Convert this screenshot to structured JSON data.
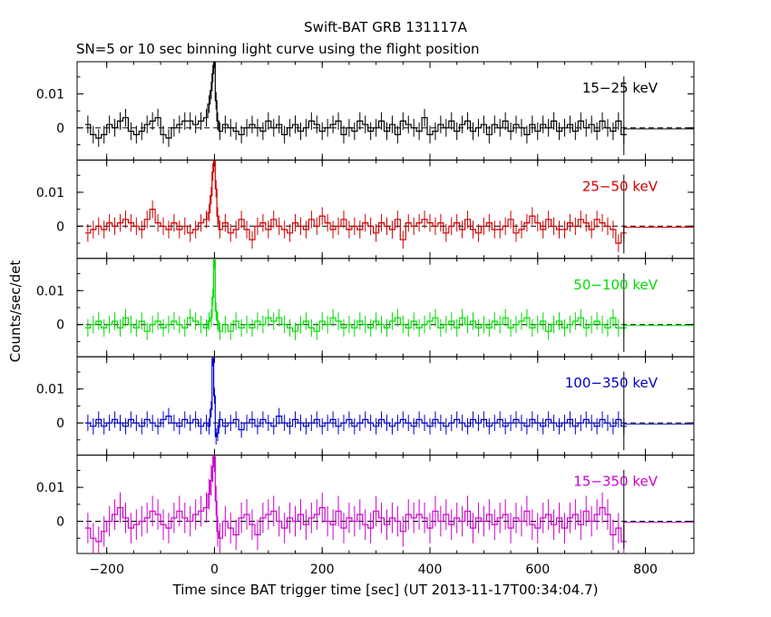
{
  "title": "Swift-BAT GRB 131117A",
  "subtitle": "SN=5 or 10 sec binning light curve using the flight position",
  "ylabel": "Counts/sec/det",
  "xlabel": "Time since BAT trigger time [sec] (UT 2013-11-17T00:34:04.7)",
  "chart_data": {
    "type": "line",
    "title": "Swift-BAT GRB 131117A",
    "subtitle": "SN=5 or 10 sec binning light curve using the flight position",
    "xlabel": "Time since BAT trigger time [sec] (UT 2013-11-17T00:34:04.7)",
    "ylabel": "Counts/sec/det",
    "xlim": [
      -255,
      890
    ],
    "ylim": [
      -0.0095,
      0.0195
    ],
    "x_ticks": [
      -200,
      0,
      200,
      400,
      600,
      800
    ],
    "y_ticks": [
      0,
      0.01
    ],
    "x_tick_labels": [
      "−200",
      "0",
      "200",
      "400",
      "600",
      "800"
    ],
    "y_tick_labels": [
      "0",
      "0.01"
    ],
    "baseline": 0,
    "panels": [
      {
        "name": "15−25 keV",
        "color": "#000000",
        "err": 0.0026,
        "x": [
          -235,
          -225,
          -215,
          -205,
          -195,
          -185,
          -175,
          -165,
          -155,
          -145,
          -135,
          -125,
          -115,
          -105,
          -95,
          -85,
          -75,
          -65,
          -55,
          -45,
          -35,
          -25,
          -15,
          -10,
          -6,
          -3,
          0,
          3,
          6,
          10,
          20,
          30,
          40,
          50,
          60,
          70,
          80,
          90,
          100,
          110,
          120,
          130,
          140,
          150,
          160,
          170,
          180,
          190,
          200,
          210,
          220,
          230,
          240,
          250,
          260,
          270,
          280,
          290,
          300,
          310,
          320,
          330,
          340,
          350,
          360,
          370,
          380,
          390,
          400,
          410,
          420,
          430,
          440,
          450,
          460,
          470,
          480,
          490,
          500,
          510,
          520,
          530,
          540,
          550,
          560,
          570,
          580,
          590,
          600,
          610,
          620,
          630,
          640,
          650,
          660,
          670,
          680,
          690,
          700,
          710,
          720,
          730,
          740,
          750,
          760
        ],
        "y": [
          0.001,
          -0.002,
          -0.003,
          -0.002,
          0.001,
          0,
          0.002,
          0.003,
          -0.001,
          -0.002,
          -0.001,
          0.001,
          0.002,
          0.003,
          -0.002,
          -0.003,
          0,
          0.001,
          0.002,
          0.002,
          0.001,
          0.002,
          0.003,
          0.007,
          0.011,
          0.016,
          0.021,
          0.008,
          0.002,
          -0.001,
          0.001,
          0,
          -0.001,
          -0.002,
          0,
          0.001,
          0,
          -0.001,
          0.002,
          0,
          0.001,
          -0.002,
          0,
          0.001,
          -0.001,
          0,
          0.002,
          0.001,
          -0.001,
          0,
          0.001,
          0.002,
          -0.002,
          0,
          -0.001,
          0.002,
          0.001,
          -0.001,
          0,
          0.002,
          -0.001,
          0.001,
          -0.002,
          0.002,
          0.001,
          0,
          -0.001,
          0.003,
          -0.002,
          -0.001,
          0.001,
          0,
          0.002,
          -0.001,
          0.001,
          0.002,
          -0.001,
          0,
          0.001,
          -0.002,
          0.001,
          0,
          0.002,
          -0.001,
          0.001,
          0,
          -0.002,
          0.001,
          -0.001,
          0.001,
          0,
          0.002,
          -0.001,
          0,
          0.001,
          -0.001,
          0.002,
          0,
          0.001,
          -0.001,
          0.002,
          0,
          -0.001,
          0.002,
          -0.002
        ]
      },
      {
        "name": "25−50 keV",
        "color": "#cc0000",
        "err": 0.0026,
        "x": [
          -235,
          -225,
          -215,
          -205,
          -195,
          -185,
          -175,
          -165,
          -155,
          -145,
          -135,
          -125,
          -115,
          -105,
          -95,
          -85,
          -75,
          -65,
          -55,
          -45,
          -35,
          -25,
          -15,
          -10,
          -6,
          -3,
          0,
          3,
          6,
          10,
          20,
          30,
          40,
          50,
          60,
          70,
          80,
          90,
          100,
          110,
          120,
          130,
          140,
          150,
          160,
          170,
          180,
          190,
          200,
          210,
          220,
          230,
          240,
          250,
          260,
          270,
          280,
          290,
          300,
          310,
          320,
          330,
          340,
          350,
          360,
          370,
          380,
          390,
          400,
          410,
          420,
          430,
          440,
          450,
          460,
          470,
          480,
          490,
          500,
          510,
          520,
          530,
          540,
          550,
          560,
          570,
          580,
          590,
          600,
          610,
          620,
          630,
          640,
          650,
          660,
          670,
          680,
          690,
          700,
          710,
          720,
          730,
          740,
          750,
          760
        ],
        "y": [
          -0.002,
          -0.001,
          0,
          -0.001,
          0.001,
          0,
          0.001,
          0.002,
          0.001,
          0,
          -0.001,
          0.002,
          0.005,
          0.001,
          0,
          -0.001,
          0.001,
          -0.001,
          0,
          -0.002,
          -0.001,
          0.001,
          0.002,
          0.004,
          0.009,
          0.016,
          0.021,
          0.011,
          0.003,
          -0.001,
          0.001,
          -0.002,
          -0.001,
          0.002,
          -0.001,
          -0.004,
          0,
          0.001,
          -0.001,
          0.002,
          0,
          -0.001,
          -0.002,
          0.001,
          0,
          -0.001,
          0.002,
          0,
          0.003,
          0.001,
          -0.001,
          0,
          0.002,
          -0.001,
          0,
          -0.001,
          0.001,
          0,
          -0.002,
          0.001,
          0,
          -0.001,
          0.002,
          -0.004,
          0.001,
          0,
          0.001,
          0.002,
          0.001,
          0,
          0.001,
          -0.002,
          0,
          0.001,
          -0.001,
          0.002,
          -0.001,
          -0.002,
          0,
          0.001,
          -0.001,
          -0.001,
          0,
          0.002,
          -0.002,
          -0.001,
          0.001,
          0.003,
          0.001,
          -0.001,
          0.002,
          0,
          -0.001,
          -0.001,
          0.001,
          0,
          0.002,
          0.001,
          -0.001,
          0.002,
          0.001,
          0,
          -0.001,
          -0.005,
          -0.002
        ]
      },
      {
        "name": "50−100 keV",
        "color": "#00dd00",
        "err": 0.0026,
        "x": [
          -235,
          -225,
          -215,
          -205,
          -195,
          -185,
          -175,
          -165,
          -155,
          -145,
          -135,
          -125,
          -115,
          -105,
          -95,
          -85,
          -75,
          -65,
          -55,
          -45,
          -35,
          -25,
          -15,
          -10,
          -6,
          -3,
          0,
          3,
          6,
          10,
          20,
          30,
          40,
          50,
          60,
          70,
          80,
          90,
          100,
          110,
          120,
          130,
          140,
          150,
          160,
          170,
          180,
          190,
          200,
          210,
          220,
          230,
          240,
          250,
          260,
          270,
          280,
          290,
          300,
          310,
          320,
          330,
          340,
          350,
          360,
          370,
          380,
          390,
          400,
          410,
          420,
          430,
          440,
          450,
          460,
          470,
          480,
          490,
          500,
          510,
          520,
          530,
          540,
          550,
          560,
          570,
          580,
          590,
          600,
          610,
          620,
          630,
          640,
          650,
          660,
          670,
          680,
          690,
          700,
          710,
          720,
          730,
          740,
          750,
          760
        ],
        "y": [
          -0.001,
          0,
          0.001,
          -0.001,
          0,
          0.001,
          -0.001,
          0.002,
          0,
          -0.001,
          0.001,
          -0.002,
          0,
          0.001,
          -0.001,
          0,
          0.001,
          0,
          -0.001,
          0.002,
          0.001,
          0,
          -0.001,
          0.001,
          0.002,
          0.008,
          0.019,
          0.004,
          0.001,
          -0.002,
          0,
          -0.002,
          0.001,
          -0.001,
          0,
          -0.001,
          0.001,
          0,
          0.002,
          0.001,
          0.002,
          0,
          -0.001,
          -0.002,
          0,
          0.001,
          -0.001,
          -0.002,
          0.001,
          0,
          0.002,
          0.001,
          -0.001,
          0,
          -0.001,
          0.001,
          0,
          -0.001,
          0.001,
          0,
          -0.001,
          0.001,
          0.002,
          0,
          -0.001,
          0.001,
          -0.001,
          0,
          0.001,
          0.002,
          -0.001,
          0,
          0.001,
          -0.001,
          0.002,
          0,
          0.001,
          -0.001,
          0,
          -0.001,
          0.001,
          0,
          0.002,
          -0.001,
          0,
          0.001,
          0.002,
          -0.001,
          0,
          0.001,
          -0.002,
          0,
          0.001,
          -0.001,
          0,
          0.001,
          0.002,
          -0.001,
          0,
          0.001,
          0,
          -0.001,
          0.002,
          -0.001,
          -0.001
        ]
      },
      {
        "name": "100−350 keV",
        "color": "#0000cc",
        "err": 0.0024,
        "x": [
          -235,
          -225,
          -215,
          -205,
          -195,
          -185,
          -175,
          -165,
          -155,
          -145,
          -135,
          -125,
          -115,
          -105,
          -95,
          -85,
          -75,
          -65,
          -55,
          -45,
          -35,
          -25,
          -15,
          -10,
          -6,
          -3,
          0,
          3,
          6,
          10,
          20,
          30,
          40,
          50,
          60,
          70,
          80,
          90,
          100,
          110,
          120,
          130,
          140,
          150,
          160,
          170,
          180,
          190,
          200,
          210,
          220,
          230,
          240,
          250,
          260,
          270,
          280,
          290,
          300,
          310,
          320,
          330,
          340,
          350,
          360,
          370,
          380,
          390,
          400,
          410,
          420,
          430,
          440,
          450,
          460,
          470,
          480,
          490,
          500,
          510,
          520,
          530,
          540,
          550,
          560,
          570,
          580,
          590,
          600,
          610,
          620,
          630,
          640,
          650,
          660,
          670,
          680,
          690,
          700,
          710,
          720,
          730,
          740,
          750,
          760
        ],
        "y": [
          0,
          -0.001,
          0.001,
          -0.001,
          0,
          0.001,
          0,
          -0.001,
          0.001,
          0,
          -0.001,
          0.001,
          0,
          -0.001,
          0.001,
          0.002,
          0,
          -0.001,
          0.001,
          0,
          0.001,
          -0.001,
          0,
          -0.001,
          0.004,
          0.019,
          0.008,
          -0.004,
          -0.003,
          0.001,
          -0.001,
          0,
          0.001,
          -0.002,
          0,
          0.001,
          -0.001,
          0.001,
          0,
          -0.001,
          0.002,
          0,
          -0.001,
          0.001,
          0,
          -0.001,
          0,
          0.001,
          -0.001,
          0,
          0.001,
          -0.001,
          0,
          0.001,
          -0.001,
          0,
          0.001,
          0,
          -0.001,
          0.001,
          0,
          -0.001,
          0,
          0.001,
          0,
          -0.001,
          0.001,
          0,
          -0.001,
          0.001,
          0,
          -0.001,
          0,
          0.001,
          0,
          -0.001,
          0.001,
          0,
          0.001,
          -0.001,
          0,
          0.001,
          -0.001,
          0,
          0.001,
          0,
          -0.001,
          0.001,
          0,
          -0.001,
          0.001,
          0,
          -0.001,
          0,
          0.001,
          -0.001,
          0,
          0.001,
          0,
          -0.001,
          0.001,
          0,
          -0.001,
          0.001,
          -0.001
        ]
      },
      {
        "name": "15−350 keV",
        "color": "#cc00cc",
        "err": 0.0045,
        "x": [
          -235,
          -225,
          -215,
          -205,
          -195,
          -185,
          -175,
          -165,
          -155,
          -145,
          -135,
          -125,
          -115,
          -105,
          -95,
          -85,
          -75,
          -65,
          -55,
          -45,
          -35,
          -25,
          -15,
          -10,
          -6,
          -3,
          0,
          3,
          6,
          10,
          20,
          30,
          40,
          50,
          60,
          70,
          80,
          90,
          100,
          110,
          120,
          130,
          140,
          150,
          160,
          170,
          180,
          190,
          200,
          210,
          220,
          230,
          240,
          250,
          260,
          270,
          280,
          290,
          300,
          310,
          320,
          330,
          340,
          350,
          360,
          370,
          380,
          390,
          400,
          410,
          420,
          430,
          440,
          450,
          460,
          470,
          480,
          490,
          500,
          510,
          520,
          530,
          540,
          550,
          560,
          570,
          580,
          590,
          600,
          610,
          620,
          630,
          640,
          650,
          660,
          670,
          680,
          690,
          700,
          710,
          720,
          730,
          740,
          750,
          760
        ],
        "y": [
          -0.002,
          -0.005,
          -0.006,
          -0.003,
          0,
          0.002,
          0.004,
          0.001,
          -0.002,
          -0.001,
          0,
          0.001,
          0.003,
          0.002,
          -0.001,
          -0.002,
          0.001,
          0.003,
          0.001,
          0,
          0.002,
          0.003,
          0.004,
          0.008,
          0.012,
          0.016,
          0.019,
          0.006,
          -0.003,
          -0.005,
          0,
          -0.002,
          -0.004,
          0.001,
          0.002,
          -0.001,
          -0.004,
          0.001,
          0.002,
          0.003,
          0,
          -0.002,
          0.001,
          0,
          0.002,
          -0.001,
          0.001,
          0.002,
          0.004,
          0,
          -0.001,
          0.003,
          -0.002,
          0.001,
          0,
          0.002,
          -0.001,
          -0.002,
          0.003,
          0.001,
          -0.001,
          0.001,
          0,
          -0.003,
          0.002,
          0.001,
          0.002,
          0.001,
          -0.002,
          0.003,
          0,
          0.002,
          -0.001,
          0.001,
          0,
          0.003,
          -0.002,
          0.001,
          0,
          0.002,
          -0.001,
          0.001,
          0.002,
          -0.002,
          0.001,
          0,
          0.003,
          -0.001,
          -0.002,
          0.001,
          0.002,
          -0.001,
          0.001,
          -0.002,
          0.001,
          0.002,
          -0.001,
          0.003,
          0,
          0.002,
          0.004,
          0.002,
          -0.004,
          -0.002,
          -0.006
        ]
      }
    ],
    "extension": {
      "x_start": 760,
      "x_end": 890,
      "y": -0.0003
    }
  }
}
